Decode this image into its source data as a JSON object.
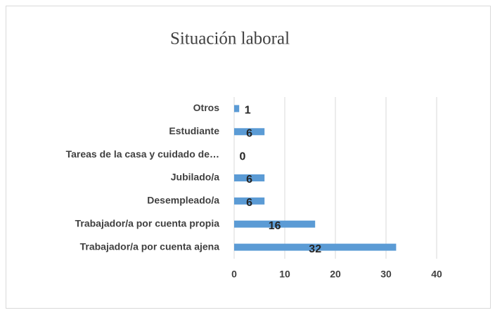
{
  "chart_data": {
    "type": "hbar",
    "title": "Situación laboral",
    "categories": [
      "Otros",
      "Estudiante",
      "Tareas de la casa y cuidado de…",
      "Jubilado/a",
      "Desempleado/a",
      "Trabajador/a por cuenta propia",
      "Trabajador/a por cuenta ajena"
    ],
    "values": [
      1,
      6,
      0,
      6,
      6,
      16,
      32
    ],
    "color": "#5b9bd5",
    "xlim": [
      0,
      40
    ],
    "xticks": [
      0,
      10,
      20,
      30,
      40
    ],
    "grid": true
  }
}
